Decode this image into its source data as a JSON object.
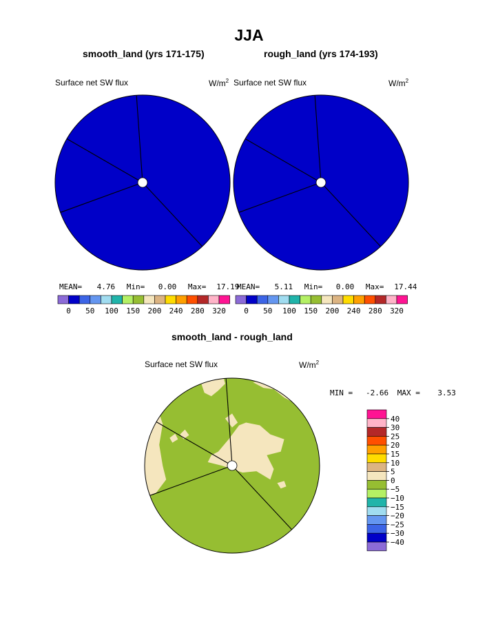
{
  "title": "JJA",
  "panels": [
    {
      "title": "smooth_land (yrs 171-175)",
      "variable": "Surface net SW flux",
      "units_base": "W/m",
      "units_exp": "2",
      "stats": {
        "mean_label": "MEAN=",
        "mean": "4.76",
        "min_label": "Min=",
        "min": "0.00",
        "max_label": "Max=",
        "max": "17.19"
      },
      "fill_color": "#0000c8"
    },
    {
      "title": "rough_land (yrs 174-193)",
      "variable": "Surface net SW flux",
      "units_base": "W/m",
      "units_exp": "2",
      "stats": {
        "mean_label": "MEAN=",
        "mean": "5.11",
        "min_label": "Min=",
        "min": "0.00",
        "max_label": "Max=",
        "max": "17.44"
      },
      "fill_color": "#0000c8"
    }
  ],
  "top_colorbar": {
    "colors": [
      "#8c6bd7",
      "#0000c8",
      "#3c64e6",
      "#6496f0",
      "#a0dcf0",
      "#20b4aa",
      "#b4f064",
      "#96be32",
      "#f5e6be",
      "#dcb482",
      "#ffdc00",
      "#ffa000",
      "#ff5000",
      "#b42828",
      "#ffb4c8",
      "#ff1493"
    ],
    "labels": [
      "0",
      "50",
      "100",
      "150",
      "200",
      "240",
      "280",
      "320"
    ]
  },
  "diff": {
    "title": "smooth_land - rough_land",
    "variable": "Surface net SW flux",
    "units": "W/m",
    "units_exp": "2",
    "min_label": "MIN =",
    "min": "-2.66",
    "max_label": "MAX =",
    "max": "3.53",
    "base_color": "#96be32",
    "patch_color": "#f5e6be"
  },
  "diff_colorbar": {
    "colors": [
      "#ff1493",
      "#ffb4c8",
      "#b42828",
      "#ff5000",
      "#ffa000",
      "#ffdc00",
      "#dcb482",
      "#f5e6be",
      "#96be32",
      "#b4f064",
      "#20b4aa",
      "#a0dcf0",
      "#6496f0",
      "#3c64e6",
      "#0000c8",
      "#8c6bd7"
    ],
    "labels": [
      "40",
      "30",
      "25",
      "20",
      "15",
      "10",
      "5",
      "0",
      "−5",
      "−10",
      "−15",
      "−20",
      "−25",
      "−30",
      "−40"
    ]
  },
  "chart_data": {
    "type": "heatmap",
    "title": "JJA",
    "charts": [
      {
        "name": "smooth_land (yrs 171-175)",
        "variable": "Surface net SW flux",
        "units": "W/m2",
        "mean": 4.76,
        "min": 0.0,
        "max": 17.19,
        "levels": [
          0,
          50,
          100,
          150,
          200,
          240,
          280,
          320
        ]
      },
      {
        "name": "rough_land (yrs 174-193)",
        "variable": "Surface net SW flux",
        "units": "W/m2",
        "mean": 5.11,
        "min": 0.0,
        "max": 17.44,
        "levels": [
          0,
          50,
          100,
          150,
          200,
          240,
          280,
          320
        ]
      },
      {
        "name": "smooth_land - rough_land",
        "variable": "Surface net SW flux",
        "units": "W/m2",
        "min": -2.66,
        "max": 3.53,
        "levels": [
          -40,
          -30,
          -25,
          -20,
          -15,
          -10,
          -5,
          0,
          5,
          10,
          15,
          20,
          25,
          30,
          40
        ]
      }
    ]
  }
}
